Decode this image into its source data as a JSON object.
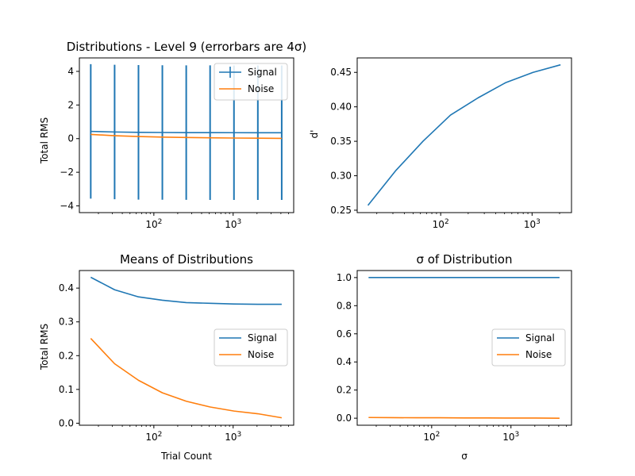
{
  "chart_data": [
    {
      "id": "tl",
      "type": "line",
      "title": "Distributions - Level 9 (errorbars are 4σ)",
      "xlabel": "",
      "ylabel": "Total RMS",
      "xscale": "log",
      "xlim": [
        11.5,
        5800
      ],
      "ylim": [
        -4.4,
        4.8
      ],
      "yticks": [
        -4,
        -2,
        0,
        2,
        4
      ],
      "ytick_labels": [
        "−4",
        "−2",
        "0",
        "2",
        "4"
      ],
      "xticks": [
        100,
        1000
      ],
      "xtick_labels": [
        "10^2",
        "10^3"
      ],
      "x": [
        16,
        32,
        64,
        128,
        256,
        512,
        1024,
        2048,
        4096
      ],
      "series": [
        {
          "name": "Signal",
          "color": "#1f77b4",
          "values": [
            0.43,
            0.395,
            0.375,
            0.365,
            0.358,
            0.355,
            0.353,
            0.352,
            0.352
          ],
          "errorbars": [
            4.0,
            4.0,
            4.0,
            4.0,
            4.0,
            4.0,
            4.0,
            4.0,
            4.0
          ]
        },
        {
          "name": "Noise",
          "color": "#ff7f0e",
          "values": [
            0.25,
            0.175,
            0.125,
            0.09,
            0.065,
            0.048,
            0.035,
            0.027,
            0.015
          ]
        }
      ],
      "legend": "upper right"
    },
    {
      "id": "tr",
      "type": "line",
      "title": "",
      "xlabel": "",
      "ylabel": "d'",
      "xscale": "log",
      "xlim": [
        12.2,
        2700
      ],
      "ylim": [
        0.2465,
        0.471
      ],
      "yticks": [
        0.25,
        0.3,
        0.35,
        0.4,
        0.45
      ],
      "ytick_labels": [
        "0.25",
        "0.30",
        "0.35",
        "0.40",
        "0.45"
      ],
      "xticks": [
        100,
        1000
      ],
      "xtick_labels": [
        "10^2",
        "10^3"
      ],
      "x": [
        16,
        32,
        64,
        128,
        256,
        512,
        1024,
        2048
      ],
      "series": [
        {
          "color": "#1f77b4",
          "values": [
            0.257,
            0.307,
            0.35,
            0.388,
            0.413,
            0.435,
            0.45,
            0.461
          ]
        }
      ]
    },
    {
      "id": "bl",
      "type": "line",
      "title": "Means of Distributions",
      "xlabel": "Trial Count",
      "ylabel": "Total RMS",
      "xscale": "log",
      "xlim": [
        11.5,
        5800
      ],
      "ylim": [
        -0.006,
        0.452
      ],
      "yticks": [
        0.0,
        0.1,
        0.2,
        0.3,
        0.4
      ],
      "ytick_labels": [
        "0.0",
        "0.1",
        "0.2",
        "0.3",
        "0.4"
      ],
      "xticks": [
        100,
        1000
      ],
      "xtick_labels": [
        "10^2",
        "10^3"
      ],
      "x": [
        16,
        32,
        64,
        128,
        256,
        512,
        1024,
        2048,
        4096
      ],
      "series": [
        {
          "name": "Signal",
          "color": "#1f77b4",
          "values": [
            0.432,
            0.395,
            0.374,
            0.364,
            0.357,
            0.355,
            0.353,
            0.352,
            0.352
          ]
        },
        {
          "name": "Noise",
          "color": "#ff7f0e",
          "values": [
            0.251,
            0.176,
            0.127,
            0.09,
            0.065,
            0.048,
            0.036,
            0.028,
            0.016
          ]
        }
      ],
      "legend": "center right"
    },
    {
      "id": "br",
      "type": "line",
      "title": "σ of Distribution",
      "xlabel": "σ",
      "ylabel": "",
      "xscale": "log",
      "xlim": [
        11.5,
        5800
      ],
      "ylim": [
        -0.05,
        1.05
      ],
      "yticks": [
        0.0,
        0.2,
        0.4,
        0.6,
        0.8,
        1.0
      ],
      "ytick_labels": [
        "0.0",
        "0.2",
        "0.4",
        "0.6",
        "0.8",
        "1.0"
      ],
      "xticks": [
        100,
        1000
      ],
      "xtick_labels": [
        "10^2",
        "10^3"
      ],
      "x": [
        16,
        32,
        64,
        128,
        256,
        512,
        1024,
        2048,
        4096
      ],
      "series": [
        {
          "name": "Signal",
          "color": "#1f77b4",
          "values": [
            1.0,
            1.0,
            1.0,
            1.0,
            1.0,
            1.0,
            1.0,
            1.0,
            1.0
          ]
        },
        {
          "name": "Noise",
          "color": "#ff7f0e",
          "values": [
            0.005,
            0.004,
            0.003,
            0.003,
            0.002,
            0.002,
            0.001,
            0.001,
            0.0
          ]
        }
      ],
      "legend": "center right"
    }
  ]
}
